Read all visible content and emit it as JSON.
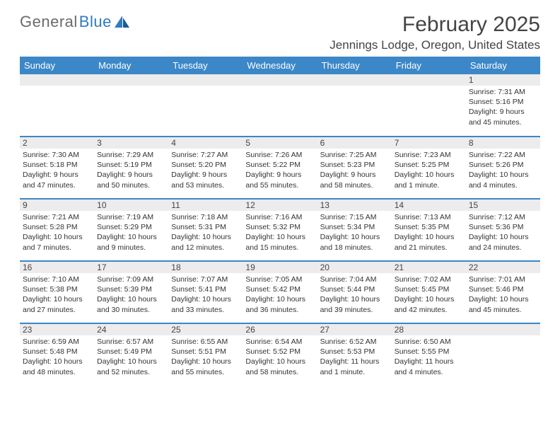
{
  "logo": {
    "text_gray": "General",
    "text_blue": "Blue"
  },
  "title": "February 2025",
  "location": "Jennings Lodge, Oregon, United States",
  "colors": {
    "header_bg": "#3c87c7",
    "header_text": "#ffffff",
    "row_border": "#3c87c7",
    "daynum_bg": "#ececec",
    "text": "#333333",
    "logo_gray": "#6b6b6b",
    "logo_blue": "#2f7bbf"
  },
  "day_headers": [
    "Sunday",
    "Monday",
    "Tuesday",
    "Wednesday",
    "Thursday",
    "Friday",
    "Saturday"
  ],
  "weeks": [
    [
      {
        "n": "",
        "lines": []
      },
      {
        "n": "",
        "lines": []
      },
      {
        "n": "",
        "lines": []
      },
      {
        "n": "",
        "lines": []
      },
      {
        "n": "",
        "lines": []
      },
      {
        "n": "",
        "lines": []
      },
      {
        "n": "1",
        "lines": [
          "Sunrise: 7:31 AM",
          "Sunset: 5:16 PM",
          "Daylight: 9 hours and 45 minutes."
        ]
      }
    ],
    [
      {
        "n": "2",
        "lines": [
          "Sunrise: 7:30 AM",
          "Sunset: 5:18 PM",
          "Daylight: 9 hours and 47 minutes."
        ]
      },
      {
        "n": "3",
        "lines": [
          "Sunrise: 7:29 AM",
          "Sunset: 5:19 PM",
          "Daylight: 9 hours and 50 minutes."
        ]
      },
      {
        "n": "4",
        "lines": [
          "Sunrise: 7:27 AM",
          "Sunset: 5:20 PM",
          "Daylight: 9 hours and 53 minutes."
        ]
      },
      {
        "n": "5",
        "lines": [
          "Sunrise: 7:26 AM",
          "Sunset: 5:22 PM",
          "Daylight: 9 hours and 55 minutes."
        ]
      },
      {
        "n": "6",
        "lines": [
          "Sunrise: 7:25 AM",
          "Sunset: 5:23 PM",
          "Daylight: 9 hours and 58 minutes."
        ]
      },
      {
        "n": "7",
        "lines": [
          "Sunrise: 7:23 AM",
          "Sunset: 5:25 PM",
          "Daylight: 10 hours and 1 minute."
        ]
      },
      {
        "n": "8",
        "lines": [
          "Sunrise: 7:22 AM",
          "Sunset: 5:26 PM",
          "Daylight: 10 hours and 4 minutes."
        ]
      }
    ],
    [
      {
        "n": "9",
        "lines": [
          "Sunrise: 7:21 AM",
          "Sunset: 5:28 PM",
          "Daylight: 10 hours and 7 minutes."
        ]
      },
      {
        "n": "10",
        "lines": [
          "Sunrise: 7:19 AM",
          "Sunset: 5:29 PM",
          "Daylight: 10 hours and 9 minutes."
        ]
      },
      {
        "n": "11",
        "lines": [
          "Sunrise: 7:18 AM",
          "Sunset: 5:31 PM",
          "Daylight: 10 hours and 12 minutes."
        ]
      },
      {
        "n": "12",
        "lines": [
          "Sunrise: 7:16 AM",
          "Sunset: 5:32 PM",
          "Daylight: 10 hours and 15 minutes."
        ]
      },
      {
        "n": "13",
        "lines": [
          "Sunrise: 7:15 AM",
          "Sunset: 5:34 PM",
          "Daylight: 10 hours and 18 minutes."
        ]
      },
      {
        "n": "14",
        "lines": [
          "Sunrise: 7:13 AM",
          "Sunset: 5:35 PM",
          "Daylight: 10 hours and 21 minutes."
        ]
      },
      {
        "n": "15",
        "lines": [
          "Sunrise: 7:12 AM",
          "Sunset: 5:36 PM",
          "Daylight: 10 hours and 24 minutes."
        ]
      }
    ],
    [
      {
        "n": "16",
        "lines": [
          "Sunrise: 7:10 AM",
          "Sunset: 5:38 PM",
          "Daylight: 10 hours and 27 minutes."
        ]
      },
      {
        "n": "17",
        "lines": [
          "Sunrise: 7:09 AM",
          "Sunset: 5:39 PM",
          "Daylight: 10 hours and 30 minutes."
        ]
      },
      {
        "n": "18",
        "lines": [
          "Sunrise: 7:07 AM",
          "Sunset: 5:41 PM",
          "Daylight: 10 hours and 33 minutes."
        ]
      },
      {
        "n": "19",
        "lines": [
          "Sunrise: 7:05 AM",
          "Sunset: 5:42 PM",
          "Daylight: 10 hours and 36 minutes."
        ]
      },
      {
        "n": "20",
        "lines": [
          "Sunrise: 7:04 AM",
          "Sunset: 5:44 PM",
          "Daylight: 10 hours and 39 minutes."
        ]
      },
      {
        "n": "21",
        "lines": [
          "Sunrise: 7:02 AM",
          "Sunset: 5:45 PM",
          "Daylight: 10 hours and 42 minutes."
        ]
      },
      {
        "n": "22",
        "lines": [
          "Sunrise: 7:01 AM",
          "Sunset: 5:46 PM",
          "Daylight: 10 hours and 45 minutes."
        ]
      }
    ],
    [
      {
        "n": "23",
        "lines": [
          "Sunrise: 6:59 AM",
          "Sunset: 5:48 PM",
          "Daylight: 10 hours and 48 minutes."
        ]
      },
      {
        "n": "24",
        "lines": [
          "Sunrise: 6:57 AM",
          "Sunset: 5:49 PM",
          "Daylight: 10 hours and 52 minutes."
        ]
      },
      {
        "n": "25",
        "lines": [
          "Sunrise: 6:55 AM",
          "Sunset: 5:51 PM",
          "Daylight: 10 hours and 55 minutes."
        ]
      },
      {
        "n": "26",
        "lines": [
          "Sunrise: 6:54 AM",
          "Sunset: 5:52 PM",
          "Daylight: 10 hours and 58 minutes."
        ]
      },
      {
        "n": "27",
        "lines": [
          "Sunrise: 6:52 AM",
          "Sunset: 5:53 PM",
          "Daylight: 11 hours and 1 minute."
        ]
      },
      {
        "n": "28",
        "lines": [
          "Sunrise: 6:50 AM",
          "Sunset: 5:55 PM",
          "Daylight: 11 hours and 4 minutes."
        ]
      },
      {
        "n": "",
        "lines": []
      }
    ]
  ]
}
